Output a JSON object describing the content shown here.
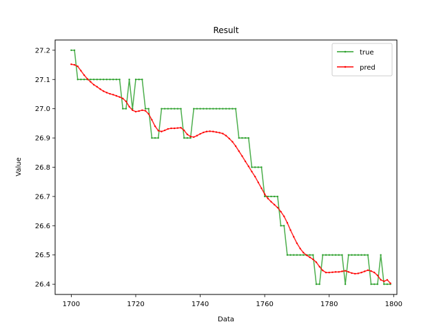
{
  "chart_data": {
    "type": "line",
    "title": "Result",
    "xlabel": "Data",
    "ylabel": "Value",
    "xlim": [
      1695,
      1801
    ],
    "ylim": [
      26.365,
      27.235
    ],
    "xticks": [
      1700,
      1720,
      1740,
      1760,
      1780,
      1800
    ],
    "yticks": [
      26.4,
      26.5,
      26.6,
      26.7,
      26.8,
      26.9,
      27.0,
      27.1,
      27.2
    ],
    "grid": false,
    "legend_position": "upper-right",
    "series": [
      {
        "name": "true",
        "color": "#2ca02c",
        "x": [
          1700,
          1701,
          1702,
          1703,
          1704,
          1705,
          1706,
          1707,
          1708,
          1709,
          1710,
          1711,
          1712,
          1713,
          1714,
          1715,
          1716,
          1717,
          1718,
          1719,
          1720,
          1721,
          1722,
          1723,
          1724,
          1725,
          1726,
          1727,
          1728,
          1729,
          1730,
          1731,
          1732,
          1733,
          1734,
          1735,
          1736,
          1737,
          1738,
          1739,
          1740,
          1741,
          1742,
          1743,
          1744,
          1745,
          1746,
          1747,
          1748,
          1749,
          1750,
          1751,
          1752,
          1753,
          1754,
          1755,
          1756,
          1757,
          1758,
          1759,
          1760,
          1761,
          1762,
          1763,
          1764,
          1765,
          1766,
          1767,
          1768,
          1769,
          1770,
          1771,
          1772,
          1773,
          1774,
          1775,
          1776,
          1777,
          1778,
          1779,
          1780,
          1781,
          1782,
          1783,
          1784,
          1785,
          1786,
          1787,
          1788,
          1789,
          1790,
          1791,
          1792,
          1793,
          1794,
          1795,
          1796,
          1797,
          1798,
          1799
        ],
        "values": [
          27.2,
          27.2,
          27.1,
          27.1,
          27.1,
          27.1,
          27.1,
          27.1,
          27.1,
          27.1,
          27.1,
          27.1,
          27.1,
          27.1,
          27.1,
          27.1,
          27.0,
          27.0,
          27.1,
          27.0,
          27.1,
          27.1,
          27.1,
          27.0,
          27.0,
          26.9,
          26.9,
          26.9,
          27.0,
          27.0,
          27.0,
          27.0,
          27.0,
          27.0,
          27.0,
          26.9,
          26.9,
          26.9,
          27.0,
          27.0,
          27.0,
          27.0,
          27.0,
          27.0,
          27.0,
          27.0,
          27.0,
          27.0,
          27.0,
          27.0,
          27.0,
          27.0,
          26.9,
          26.9,
          26.9,
          26.9,
          26.8,
          26.8,
          26.8,
          26.8,
          26.7,
          26.7,
          26.7,
          26.7,
          26.7,
          26.6,
          26.6,
          26.5,
          26.5,
          26.5,
          26.5,
          26.5,
          26.5,
          26.5,
          26.5,
          26.5,
          26.4,
          26.4,
          26.5,
          26.5,
          26.5,
          26.5,
          26.5,
          26.5,
          26.5,
          26.4,
          26.5,
          26.5,
          26.5,
          26.5,
          26.5,
          26.5,
          26.5,
          26.4,
          26.4,
          26.4,
          26.5,
          26.4,
          26.4,
          26.4
        ]
      },
      {
        "name": "pred",
        "color": "#ff0000",
        "x": [
          1700,
          1701,
          1702,
          1703,
          1704,
          1705,
          1706,
          1707,
          1708,
          1709,
          1710,
          1711,
          1712,
          1713,
          1714,
          1715,
          1716,
          1717,
          1718,
          1719,
          1720,
          1721,
          1722,
          1723,
          1724,
          1725,
          1726,
          1727,
          1728,
          1729,
          1730,
          1731,
          1732,
          1733,
          1734,
          1735,
          1736,
          1737,
          1738,
          1739,
          1740,
          1741,
          1742,
          1743,
          1744,
          1745,
          1746,
          1747,
          1748,
          1749,
          1750,
          1751,
          1752,
          1753,
          1754,
          1755,
          1756,
          1757,
          1758,
          1759,
          1760,
          1761,
          1762,
          1763,
          1764,
          1765,
          1766,
          1767,
          1768,
          1769,
          1770,
          1771,
          1772,
          1773,
          1774,
          1775,
          1776,
          1777,
          1778,
          1779,
          1780,
          1781,
          1782,
          1783,
          1784,
          1785,
          1786,
          1787,
          1788,
          1789,
          1790,
          1791,
          1792,
          1793,
          1794,
          1795,
          1796,
          1797,
          1798,
          1799
        ],
        "values": [
          27.152,
          27.15,
          27.145,
          27.13,
          27.115,
          27.102,
          27.092,
          27.082,
          27.075,
          27.067,
          27.06,
          27.055,
          27.051,
          27.048,
          27.044,
          27.04,
          27.035,
          27.025,
          27.007,
          26.995,
          26.99,
          26.992,
          26.995,
          26.993,
          26.982,
          26.962,
          26.94,
          26.925,
          26.922,
          26.926,
          26.931,
          26.933,
          26.933,
          26.934,
          26.935,
          26.926,
          26.912,
          26.905,
          26.903,
          26.908,
          26.914,
          26.919,
          26.922,
          26.923,
          26.922,
          26.92,
          26.918,
          26.915,
          26.908,
          26.898,
          26.887,
          26.872,
          26.855,
          26.838,
          26.82,
          26.803,
          26.785,
          26.768,
          26.748,
          26.728,
          26.708,
          26.693,
          26.682,
          26.672,
          26.662,
          26.648,
          26.632,
          26.61,
          26.585,
          26.562,
          26.54,
          26.522,
          26.508,
          26.499,
          26.492,
          26.485,
          26.475,
          26.46,
          26.447,
          26.44,
          26.44,
          26.441,
          26.442,
          26.442,
          26.444,
          26.446,
          26.442,
          26.438,
          26.436,
          26.437,
          26.44,
          26.444,
          26.448,
          26.445,
          26.44,
          26.43,
          26.415,
          26.41,
          26.415,
          26.403
        ]
      }
    ]
  }
}
